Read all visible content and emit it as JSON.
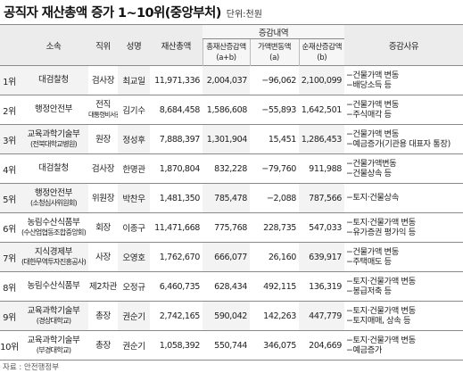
{
  "title": "공직자 재산총액 증가 1~10위(중앙부처)",
  "unit": "단위:천원",
  "headers": {
    "agency": "소속",
    "position": "직위",
    "name": "성명",
    "total": "재산총액",
    "change_group": "증감내역",
    "total_change": "총재산증감액\n(a+b)",
    "price_change": "가액변동액\n(a)",
    "net_change": "순재산증감액\n(b)",
    "reason": "증감사유"
  },
  "rows": [
    {
      "rank": "1위",
      "agency": [
        "대검찰청"
      ],
      "position": [
        "검사장"
      ],
      "name": "최교일",
      "total": "11,971,336",
      "total_change": "2,004,037",
      "price_change": "−96,062",
      "net_change": "2,100,099",
      "reason": [
        "−건물가액 변동",
        "−배당소득 등"
      ]
    },
    {
      "rank": "2위",
      "agency": [
        "행정안전부"
      ],
      "position": [
        "전직",
        "대통령비서관"
      ],
      "name": "김기수",
      "total": "8,684,458",
      "total_change": "1,586,608",
      "price_change": "−55,893",
      "net_change": "1,642,501",
      "reason": [
        "−건물가액 변동",
        "−주식매각 등"
      ]
    },
    {
      "rank": "3위",
      "agency": [
        "교육과학기술부",
        "(전북대학교병원)"
      ],
      "position": [
        "원장"
      ],
      "name": "정성후",
      "total": "7,888,397",
      "total_change": "1,301,904",
      "price_change": "15,451",
      "net_change": "1,286,453",
      "reason": [
        "−건물가액 변동",
        "−예금증가(기관용 대표자 통장)"
      ]
    },
    {
      "rank": "4위",
      "agency": [
        "대검찰청"
      ],
      "position": [
        "검사장"
      ],
      "name": "한명관",
      "total": "1,870,804",
      "total_change": "832,228",
      "price_change": "−79,760",
      "net_change": "911,988",
      "reason": [
        "−건물가액변동",
        "−건물상속 등"
      ]
    },
    {
      "rank": "5위",
      "agency": [
        "행정안전부",
        "(소청심사위원회)"
      ],
      "position": [
        "위원장"
      ],
      "name": "박찬우",
      "total": "1,481,350",
      "total_change": "785,478",
      "price_change": "−2,088",
      "net_change": "787,566",
      "reason": [
        "−토지·건물상속"
      ]
    },
    {
      "rank": "6위",
      "agency": [
        "농림수산식품부",
        "(수산업협동조합중앙회)"
      ],
      "position": [
        "회장"
      ],
      "name": "이종구",
      "total": "11,471,668",
      "total_change": "775,768",
      "price_change": "228,735",
      "net_change": "547,033",
      "reason": [
        "−토지·건물가액 변동",
        "−유가증권 평가익 등"
      ]
    },
    {
      "rank": "7위",
      "agency": [
        "지식경제부",
        "(대한무역투자진흥공사)"
      ],
      "position": [
        "사장"
      ],
      "name": "오영호",
      "total": "1,762,670",
      "total_change": "666,077",
      "price_change": "26,160",
      "net_change": "639,917",
      "reason": [
        "−건물가액 변동",
        "−주택매도 등"
      ]
    },
    {
      "rank": "8위",
      "agency": [
        "농림수산식품부"
      ],
      "position": [
        "제2차관"
      ],
      "name": "오정규",
      "total": "6,460,735",
      "total_change": "628,434",
      "price_change": "492,115",
      "net_change": "136,319",
      "reason": [
        "−토지·건물가액 변동",
        "−봉급저축 등"
      ]
    },
    {
      "rank": "9위",
      "agency": [
        "교육과학기술부",
        "(경상대학교)"
      ],
      "position": [
        "총장"
      ],
      "name": "권순기",
      "total": "2,742,165",
      "total_change": "590,042",
      "price_change": "142,263",
      "net_change": "447,779",
      "reason": [
        "−토지·건물가액 변동",
        "−토지매매, 상속 등"
      ]
    },
    {
      "rank": "10위",
      "agency": [
        "교육과학기술부",
        "(부경대학교)"
      ],
      "position": [
        "총장"
      ],
      "name": "권순기",
      "total": "1,058,392",
      "total_change": "550,744",
      "price_change": "346,075",
      "net_change": "204,669",
      "reason": [
        "−토지·건물가액 변동",
        "−예금증가"
      ]
    }
  ],
  "source": "자료 : 안전행정부"
}
